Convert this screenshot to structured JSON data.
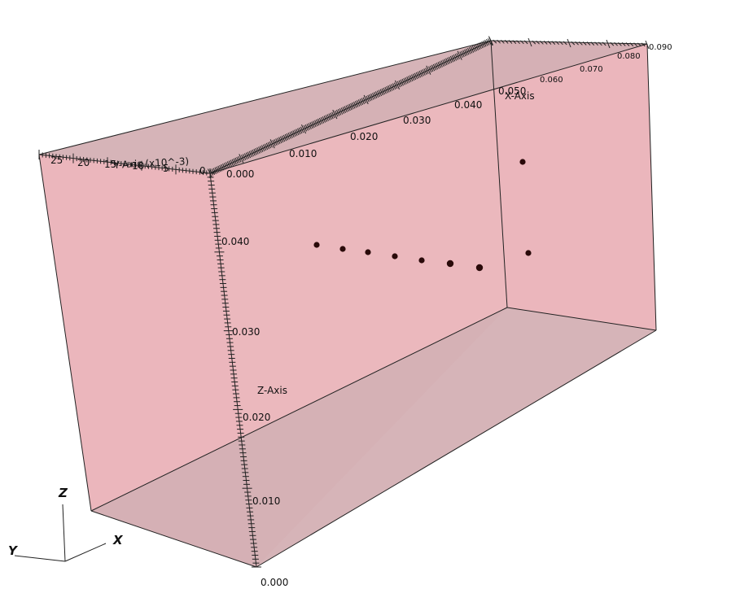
{
  "chart_data": {
    "type": "scatter",
    "projection": "3d-box",
    "x_axis": {
      "label": "X-Axis",
      "range": [
        0.0,
        0.09
      ],
      "tick_labels": [
        "0.000",
        "0.010",
        "0.020",
        "0.030",
        "0.040",
        "0.050",
        "0.060",
        "0.070",
        "0.080",
        "0.090"
      ]
    },
    "y_axis": {
      "label": "Y-Axis (x10^-3)",
      "range": [
        0,
        25
      ],
      "tick_labels": [
        "25",
        "20",
        "15",
        "10",
        "5",
        "0"
      ]
    },
    "z_axis": {
      "label": "Z-Axis",
      "range": [
        0.0,
        0.05
      ],
      "tick_labels": [
        "0.000",
        "0.010",
        "0.020",
        "0.030",
        "0.040"
      ]
    },
    "points": [
      {
        "x": 0.02,
        "y": 0,
        "z": 0.038
      },
      {
        "x": 0.026,
        "y": 0,
        "z": 0.038
      },
      {
        "x": 0.032,
        "y": 0,
        "z": 0.038
      },
      {
        "x": 0.038,
        "y": 0,
        "z": 0.038
      },
      {
        "x": 0.044,
        "y": 0,
        "z": 0.038
      },
      {
        "x": 0.05,
        "y": 0,
        "z": 0.038
      },
      {
        "x": 0.056,
        "y": 0,
        "z": 0.038
      },
      {
        "x": 0.08,
        "y": 0,
        "z": 0.046
      },
      {
        "x": 0.08,
        "y": 5,
        "z": 0.036
      }
    ],
    "colors": {
      "face": "#e6a6ad",
      "floor": "#d4b0b4",
      "edge": "#222222",
      "point": "#2a0a0a"
    }
  },
  "triad": {
    "x_label": "X",
    "y_label": "Y",
    "z_label": "Z"
  }
}
